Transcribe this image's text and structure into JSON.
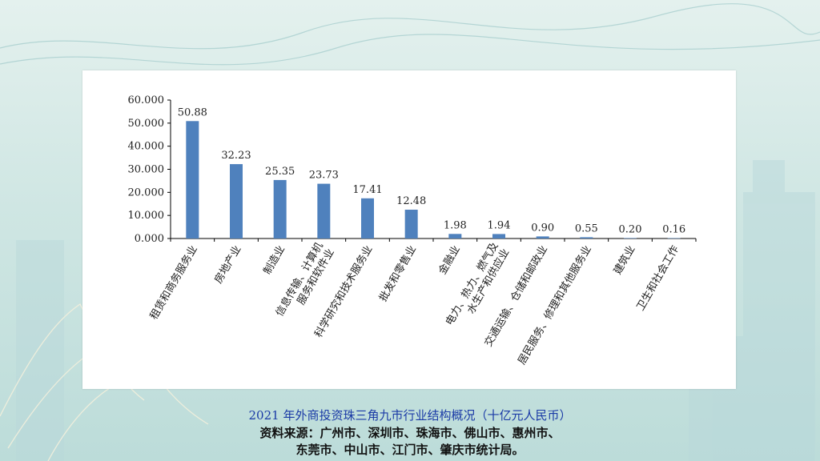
{
  "caption": "2021 年外商投资珠三角九市行业结构概况（十亿元人民币）",
  "source": {
    "line1": "资料来源：广州市、深圳市、珠海市、佛山市、惠州市、",
    "line2": "东莞市、中山市、江门市、肇庆市统计局。"
  },
  "colors": {
    "bar": "#4f81bd",
    "axis": "#000000",
    "caption": "#1a3aa6"
  },
  "chart_data": {
    "type": "bar",
    "title": "",
    "xlabel": "",
    "ylabel": "",
    "ylim": [
      0,
      60
    ],
    "yticks": [
      "0.000",
      "10.000",
      "20.000",
      "30.000",
      "40.000",
      "50.000",
      "60.000"
    ],
    "grid": false,
    "categories": [
      [
        "租赁和商务服务业"
      ],
      [
        "房地产业"
      ],
      [
        "制造业"
      ],
      [
        "信息传输、计算机",
        "服务和软件业"
      ],
      [
        "科学研究和技术服务业"
      ],
      [
        "批发和零售业"
      ],
      [
        "金融业"
      ],
      [
        "电力、热力、燃气及",
        "水生产和供应业"
      ],
      [
        "交通运输、仓储和邮政业"
      ],
      [
        "居民服务、修理和其他服务业"
      ],
      [
        "建筑业"
      ],
      [
        "卫生和社会工作"
      ]
    ],
    "values": [
      50.88,
      32.23,
      25.35,
      23.73,
      17.41,
      12.48,
      1.98,
      1.94,
      0.9,
      0.55,
      0.2,
      0.16
    ],
    "value_labels": [
      "50.88",
      "32.23",
      "25.35",
      "23.73",
      "17.41",
      "12.48",
      "1.98",
      "1.94",
      "0.90",
      "0.55",
      "0.20",
      "0.16"
    ]
  }
}
